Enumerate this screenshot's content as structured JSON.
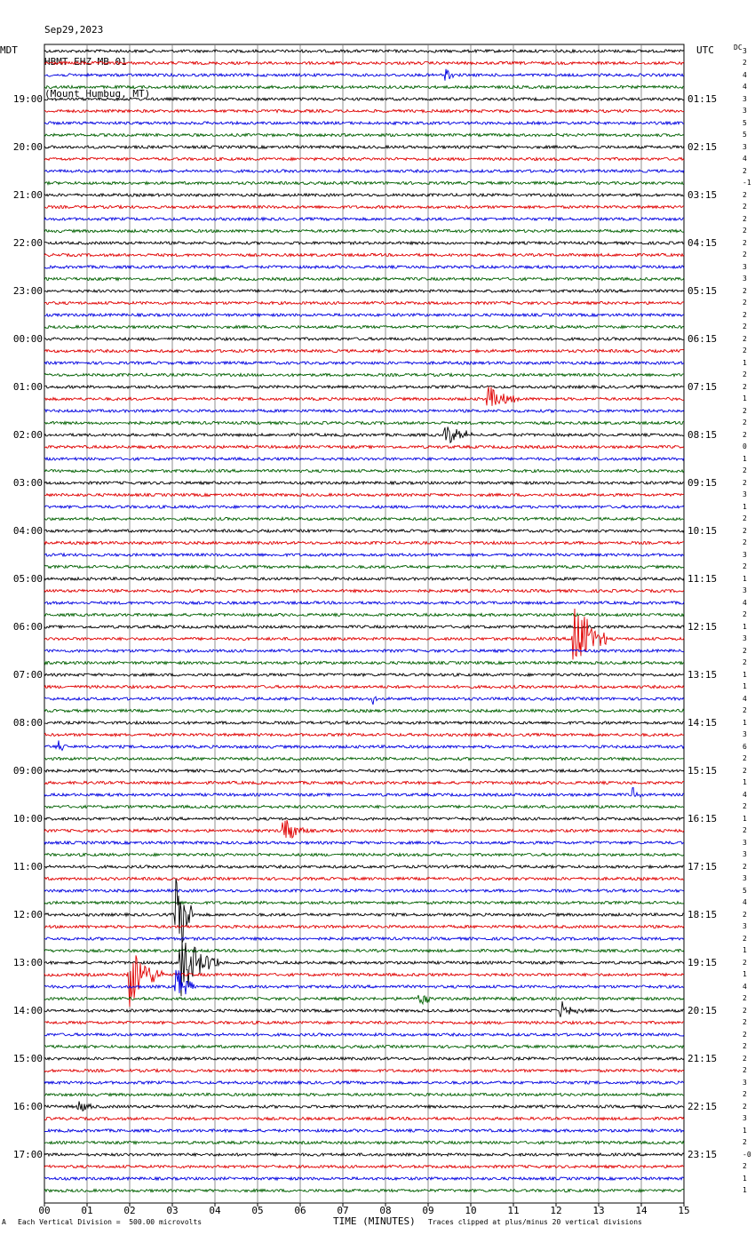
{
  "header": {
    "date": "Sep29,2023",
    "station": "HBMT EHZ MB 01",
    "location": "(Mount Humbug, MT)"
  },
  "left_timezone": "MDT",
  "right_timezone": "UTC",
  "dc_label": "DC",
  "footer": {
    "scale_prefix": "A",
    "scale_text": "Each Vertical Division =  500.00 microvolts",
    "clip_text": "Traces clipped at plus/minus 20 vertical divisions"
  },
  "chart_data": {
    "type": "line",
    "title": "HBMT EHZ MB 01",
    "xlabel": "TIME (MINUTES)",
    "xlim": [
      0,
      15
    ],
    "x_ticks": [
      "00",
      "01",
      "02",
      "03",
      "04",
      "05",
      "06",
      "07",
      "08",
      "09",
      "10",
      "11",
      "12",
      "13",
      "14",
      "15"
    ],
    "trace_count": 96,
    "trace_colors": [
      "#000000",
      "#e00000",
      "#0000e0",
      "#006000"
    ],
    "left_hour_labels": [
      "19:00",
      "20:00",
      "21:00",
      "22:00",
      "23:00",
      "00:00",
      "01:00",
      "02:00",
      "03:00",
      "04:00",
      "05:00",
      "06:00",
      "07:00",
      "08:00",
      "09:00",
      "10:00",
      "11:00",
      "12:00",
      "13:00",
      "14:00",
      "15:00",
      "16:00",
      "17:00"
    ],
    "right_hour_labels": [
      "01:15",
      "02:15",
      "03:15",
      "04:15",
      "05:15",
      "06:15",
      "07:15",
      "08:15",
      "09:15",
      "10:15",
      "11:15",
      "12:15",
      "13:15",
      "14:15",
      "15:15",
      "16:15",
      "17:15",
      "18:15",
      "19:15",
      "20:15",
      "21:15",
      "22:15",
      "23:15"
    ],
    "dc_offsets": [
      "3",
      "2",
      "4",
      "4",
      "3",
      "3",
      "5",
      "5",
      "3",
      "4",
      "2",
      "-1",
      "2",
      "2",
      "2",
      "2",
      "2",
      "2",
      "3",
      "3",
      "2",
      "2",
      "2",
      "2",
      "2",
      "2",
      "1",
      "2",
      "2",
      "1",
      "2",
      "2",
      "2",
      "0",
      "1",
      "2",
      "2",
      "3",
      "1",
      "2",
      "2",
      "2",
      "3",
      "2",
      "1",
      "3",
      "4",
      "2",
      "1",
      "3",
      "2",
      "2",
      "1",
      "1",
      "4",
      "2",
      "1",
      "3",
      "6",
      "2",
      "2",
      "1",
      "4",
      "2",
      "1",
      "2",
      "3",
      "3",
      "2",
      "3",
      "5",
      "4",
      "2",
      "3",
      "2",
      "1",
      "2",
      "1",
      "4",
      "2",
      "2",
      "2",
      "2",
      "2",
      "2",
      "2",
      "3",
      "2",
      "2",
      "3",
      "1",
      "2",
      "-0",
      "2",
      "1",
      "1"
    ],
    "events": [
      {
        "trace": 2,
        "minute": 9.4,
        "amplitude": 0.8,
        "duration": 0.2
      },
      {
        "trace": 29,
        "minute": 10.4,
        "amplitude": 1.2,
        "duration": 0.8
      },
      {
        "trace": 32,
        "minute": 9.4,
        "amplitude": 0.9,
        "duration": 0.9
      },
      {
        "trace": 49,
        "minute": 12.4,
        "amplitude": 4.0,
        "duration": 0.8
      },
      {
        "trace": 54,
        "minute": 7.7,
        "amplitude": 0.6,
        "duration": 0.2
      },
      {
        "trace": 58,
        "minute": 0.3,
        "amplitude": 0.7,
        "duration": 0.3
      },
      {
        "trace": 62,
        "minute": 13.8,
        "amplitude": 0.8,
        "duration": 0.2
      },
      {
        "trace": 65,
        "minute": 5.6,
        "amplitude": 1.6,
        "duration": 0.6
      },
      {
        "trace": 72,
        "minute": 3.1,
        "amplitude": 5.0,
        "duration": 0.4
      },
      {
        "trace": 76,
        "minute": 3.2,
        "amplitude": 3.0,
        "duration": 0.9
      },
      {
        "trace": 77,
        "minute": 2.0,
        "amplitude": 3.0,
        "duration": 0.8
      },
      {
        "trace": 78,
        "minute": 3.1,
        "amplitude": 2.2,
        "duration": 0.4
      },
      {
        "trace": 79,
        "minute": 8.8,
        "amplitude": 0.9,
        "duration": 0.3
      },
      {
        "trace": 80,
        "minute": 12.1,
        "amplitude": 0.8,
        "duration": 0.6
      },
      {
        "trace": 88,
        "minute": 0.8,
        "amplitude": 0.6,
        "duration": 0.4
      }
    ]
  }
}
